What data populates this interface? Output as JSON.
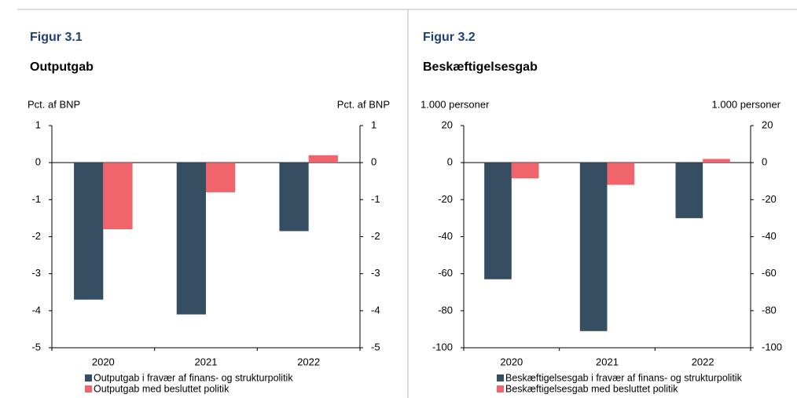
{
  "chart_data": [
    {
      "type": "bar",
      "figure": "Figur 3.1",
      "title": "Outputgab",
      "ylabel": "Pct. af BNP",
      "y2label": "Pct. af BNP",
      "categories": [
        "2020",
        "2021",
        "2022"
      ],
      "series": [
        {
          "name": "Outputgab i fravær af finans- og strukturpolitik",
          "color": "#364e61",
          "values": [
            -3.7,
            -4.1,
            -1.85
          ]
        },
        {
          "name": "Outputgab med besluttet politik",
          "color": "#f0656c",
          "values": [
            -1.8,
            -0.8,
            0.2
          ]
        }
      ],
      "ylim": [
        -5,
        1
      ],
      "yticks": [
        1,
        0,
        -1,
        -2,
        -3,
        -4,
        -5
      ]
    },
    {
      "type": "bar",
      "figure": "Figur 3.2",
      "title": "Beskæftigelsesgab",
      "ylabel": "1.000 personer",
      "y2label": "1.000 personer",
      "categories": [
        "2020",
        "2021",
        "2022"
      ],
      "series": [
        {
          "name": "Beskæftigelsesgab i fravær af finans- og strukturpolitik",
          "color": "#364e61",
          "values": [
            -63,
            -91,
            -30
          ]
        },
        {
          "name": "Beskæftigelsesgab med besluttet politik",
          "color": "#f0656c",
          "values": [
            -8.5,
            -12,
            2
          ]
        }
      ],
      "ylim": [
        -100,
        20
      ],
      "yticks": [
        20,
        0,
        -20,
        -40,
        -60,
        -80,
        -100
      ]
    }
  ]
}
